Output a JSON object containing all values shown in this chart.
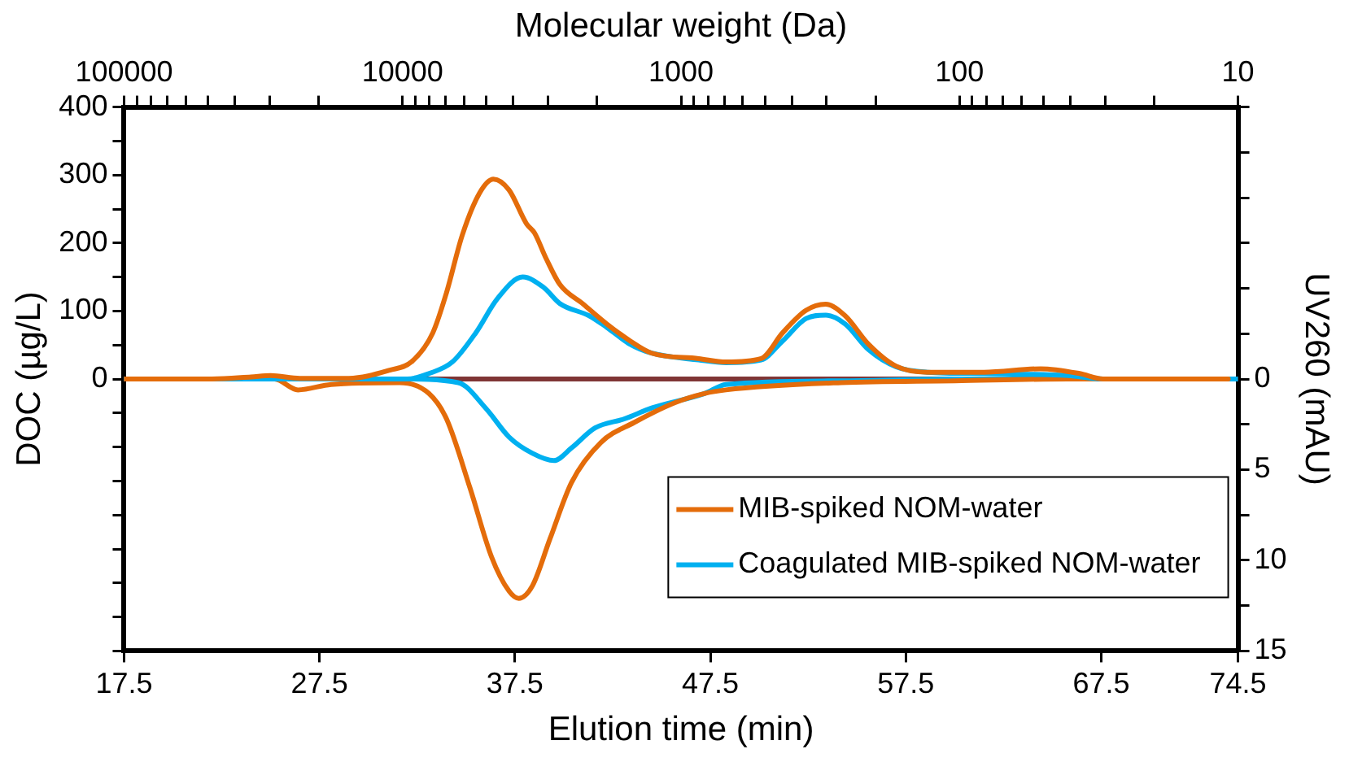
{
  "chart_data": {
    "type": "line",
    "xlabel": "Elution time (min)",
    "ylabel": "DOC (µg/L)",
    "y2label": "UV260 (mAU)",
    "x2label": "Molecular weight (Da)",
    "xlim": [
      17.5,
      74.5
    ],
    "xticks": [
      17.5,
      27.5,
      37.5,
      47.5,
      57.5,
      67.5,
      74.5
    ],
    "ylim": [
      -400,
      400
    ],
    "yticks": [
      {
        "value": -400,
        "label": null
      },
      {
        "value": -350,
        "label": null
      },
      {
        "value": -300,
        "label": null
      },
      {
        "value": -250,
        "label": null
      },
      {
        "value": -200,
        "label": null
      },
      {
        "value": -150,
        "label": null
      },
      {
        "value": -100,
        "label": null
      },
      {
        "value": -50,
        "label": null
      },
      0,
      {
        "value": 50,
        "label": null
      },
      100,
      {
        "value": 150,
        "label": null
      },
      200,
      {
        "value": 250,
        "label": null
      },
      300,
      {
        "value": 350,
        "label": null
      },
      400
    ],
    "y2lim": [
      15,
      -15
    ],
    "y2ticks": [
      {
        "value": -15,
        "label": null
      },
      {
        "value": -12.5,
        "label": null
      },
      {
        "value": -10,
        "label": null
      },
      {
        "value": -7.5,
        "label": null
      },
      {
        "value": -5,
        "label": null
      },
      {
        "value": -2.5,
        "label": null
      },
      0,
      {
        "value": 2.5,
        "label": null
      },
      5,
      {
        "value": 7.5,
        "label": null
      },
      10,
      {
        "value": 12.5,
        "label": null
      },
      15
    ],
    "x2lim": [
      100000,
      10
    ],
    "x2ticks": [
      100000,
      {
        "value": 90000,
        "label": null
      },
      {
        "value": 80000,
        "label": null
      },
      {
        "value": 70000,
        "label": null
      },
      {
        "value": 60000,
        "label": null
      },
      {
        "value": 50000,
        "label": null
      },
      {
        "value": 40000,
        "label": null
      },
      {
        "value": 30000,
        "label": null
      },
      {
        "value": 20000,
        "label": null
      },
      10000,
      {
        "value": 9000,
        "label": null
      },
      {
        "value": 8000,
        "label": null
      },
      {
        "value": 7000,
        "label": null
      },
      {
        "value": 6000,
        "label": null
      },
      {
        "value": 5000,
        "label": null
      },
      {
        "value": 4000,
        "label": null
      },
      {
        "value": 3000,
        "label": null
      },
      {
        "value": 2000,
        "label": null
      },
      1000,
      {
        "value": 900,
        "label": null
      },
      {
        "value": 800,
        "label": null
      },
      {
        "value": 700,
        "label": null
      },
      {
        "value": 600,
        "label": null
      },
      {
        "value": 500,
        "label": null
      },
      {
        "value": 400,
        "label": null
      },
      {
        "value": 300,
        "label": null
      },
      {
        "value": 200,
        "label": null
      },
      100,
      {
        "value": 90,
        "label": null
      },
      {
        "value": 80,
        "label": null
      },
      {
        "value": 70,
        "label": null
      },
      {
        "value": 60,
        "label": null
      },
      {
        "value": 50,
        "label": null
      },
      {
        "value": 40,
        "label": null
      },
      {
        "value": 30,
        "label": null
      },
      {
        "value": 20,
        "label": null
      },
      10
    ],
    "log": "x2",
    "grid": false,
    "legend": "bottom right",
    "marker": "none",
    "line_style": "solid",
    "ref_lines": [
      {
        "axis": "y",
        "value": 0,
        "color": "#7f3535"
      }
    ],
    "series": [
      {
        "name": "MIB-spiked NOM-water",
        "color": "#e46c0a",
        "axis": "y",
        "x": [
          17.5,
          22,
          24,
          25,
          26.5,
          29,
          31.1,
          32.2,
          33.3,
          34,
          34.8,
          35.7,
          36.4,
          37.2,
          38.1,
          38.5,
          39.1,
          39.8,
          41,
          42.2,
          43.4,
          44.5,
          46.9,
          48.3,
          50.1,
          51.2,
          52.4,
          53.4,
          54.4,
          55.6,
          57,
          58.6,
          61.5,
          64.4,
          66.4,
          67.6,
          74
        ],
        "values": [
          0,
          0,
          3,
          5,
          1,
          1,
          13,
          25,
          68,
          127,
          211,
          274,
          294,
          278,
          228,
          215,
          177,
          139,
          110,
          81,
          56,
          38,
          30,
          25,
          30,
          68,
          101,
          110,
          93,
          51,
          19,
          10,
          10,
          15,
          8,
          0,
          0
        ]
      },
      {
        "name": "Coagulated MIB-spiked NOM-water",
        "color": "#00b0f0",
        "axis": "y",
        "x": [
          17.5,
          30,
          32,
          33.1,
          34.3,
          35.5,
          36.6,
          37.9,
          38.96,
          39.8,
          41.3,
          42.2,
          43.4,
          44.5,
          46.9,
          48.3,
          50.1,
          51.2,
          52.4,
          53.4,
          54.4,
          55.6,
          57,
          58.6,
          61.5,
          65.8,
          67.6,
          74.5
        ],
        "values": [
          0,
          0,
          0,
          8,
          25,
          68,
          118,
          150,
          135,
          111,
          93,
          76,
          51,
          38,
          28,
          24,
          28,
          56,
          89,
          94,
          81,
          43,
          18,
          10,
          8,
          5,
          0,
          0
        ]
      },
      {
        "color": "#e46c0a",
        "axis": "y2",
        "x": [
          17.5,
          24,
          25.2,
          26.4,
          28.1,
          31.6,
          33.1,
          34,
          35.2,
          36.3,
          37.2,
          37.7,
          38.4,
          39.3,
          40.4,
          41.9,
          43.6,
          45.7,
          47.2,
          48.3,
          54.2,
          60,
          65.8,
          67.2
        ],
        "values": [
          0,
          0,
          0,
          0.6,
          0.3,
          0.2,
          0.8,
          2.2,
          6,
          9.8,
          11.7,
          12.1,
          11.4,
          8.8,
          5.7,
          3.5,
          2.4,
          1.3,
          0.8,
          0.6,
          0.2,
          0.1,
          0,
          0
        ]
      },
      {
        "color": "#00b0f0",
        "axis": "y2",
        "x": [
          17.5,
          31.6,
          34.6,
          36,
          37.2,
          38.4,
          39.5,
          40.4,
          41.6,
          43.1,
          44.5,
          47.2,
          48.3,
          54.2,
          60,
          67
        ],
        "values": [
          0,
          0,
          0.2,
          1.6,
          3.2,
          4.1,
          4.5,
          3.8,
          2.7,
          2.2,
          1.6,
          0.8,
          0.3,
          0.1,
          0,
          0
        ]
      }
    ]
  }
}
